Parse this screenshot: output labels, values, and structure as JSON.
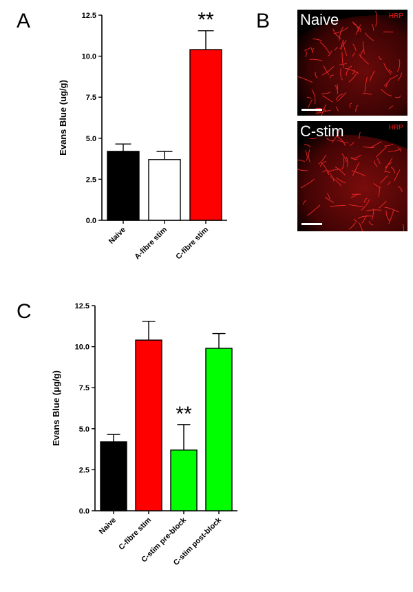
{
  "panel_letters": {
    "a": "A",
    "b": "B",
    "c": "C"
  },
  "micrographs": [
    {
      "label": "Naive",
      "marker": "HRP"
    },
    {
      "label": "C-stim",
      "marker": "HRP"
    }
  ],
  "colors": {
    "black": "#000000",
    "white": "#ffffff",
    "red": "#ff0000",
    "green": "#00ff00"
  },
  "chart_data": [
    {
      "panel": "A",
      "type": "bar",
      "ylabel": "Evans Blue (ug/g)",
      "ylim": [
        0,
        12.5
      ],
      "yticks": [
        "0.0",
        "2.5",
        "5.0",
        "7.5",
        "10.0",
        "12.5"
      ],
      "categories": [
        "Naive",
        "A-fibre stim",
        "C-fibre stim"
      ],
      "values": [
        4.2,
        3.7,
        10.4
      ],
      "errors": [
        0.45,
        0.5,
        1.15
      ],
      "bar_colors": [
        "#000000",
        "#ffffff",
        "#ff0000"
      ],
      "significance": [
        "",
        "",
        "**"
      ]
    },
    {
      "panel": "C",
      "type": "bar",
      "ylabel": "Evans Blue (μg/g)",
      "ylim": [
        0,
        12.5
      ],
      "yticks": [
        "0.0",
        "2.5",
        "5.0",
        "7.5",
        "10.0",
        "12.5"
      ],
      "categories": [
        "Naive",
        "C-fibre stim",
        "C-stim pre-block",
        "C-stim post-block"
      ],
      "values": [
        4.2,
        10.4,
        3.7,
        9.9
      ],
      "errors": [
        0.45,
        1.15,
        1.55,
        0.9
      ],
      "bar_colors": [
        "#000000",
        "#ff0000",
        "#00ff00",
        "#00ff00"
      ],
      "significance": [
        "",
        "",
        "**",
        ""
      ]
    }
  ]
}
